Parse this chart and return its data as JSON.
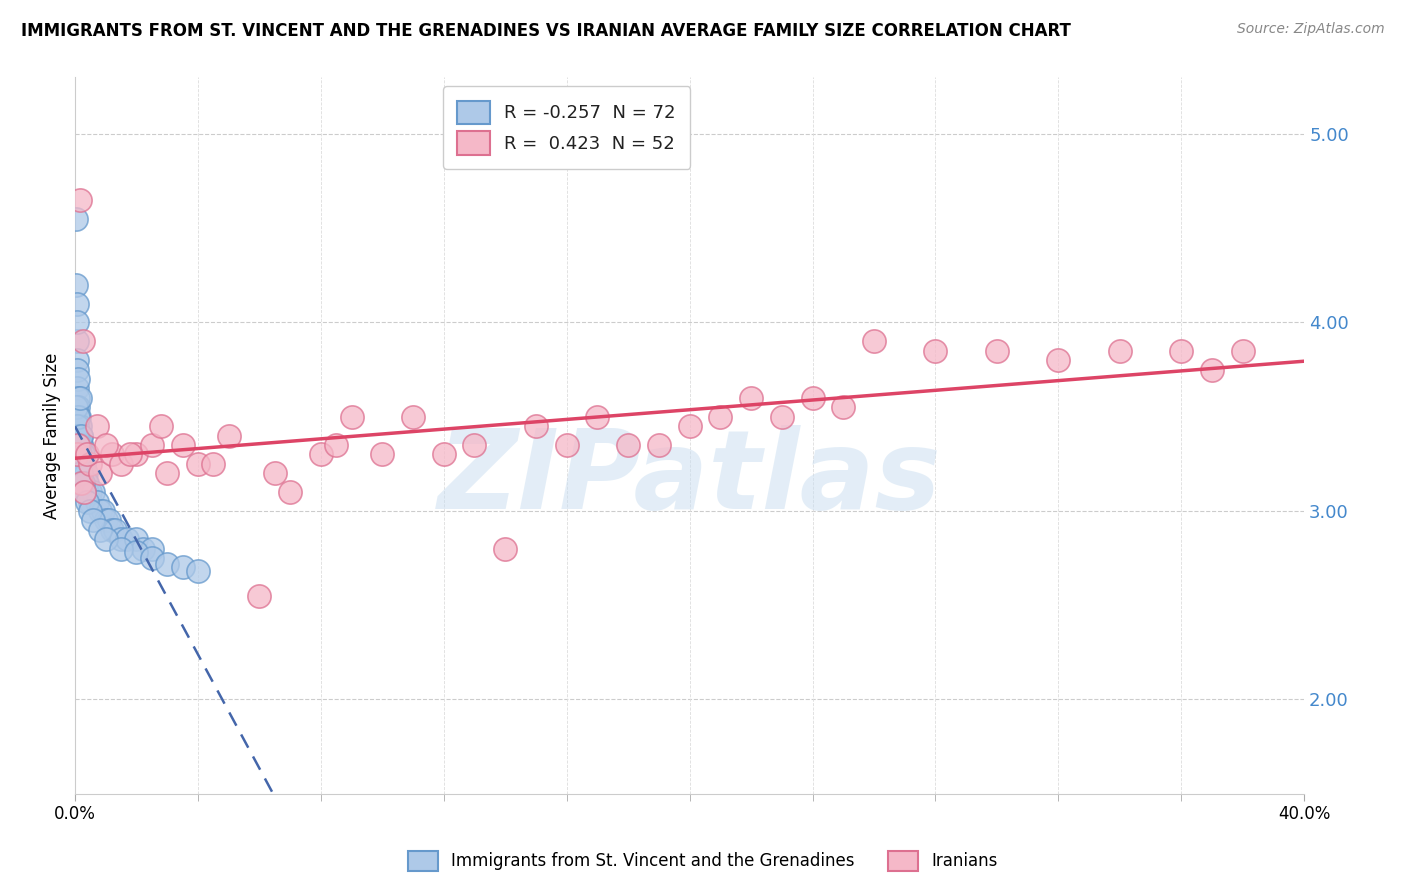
{
  "title": "IMMIGRANTS FROM ST. VINCENT AND THE GRENADINES VS IRANIAN AVERAGE FAMILY SIZE CORRELATION CHART",
  "source": "Source: ZipAtlas.com",
  "ylabel": "Average Family Size",
  "right_yticks": [
    2.0,
    3.0,
    4.0,
    5.0
  ],
  "blue_R": -0.257,
  "blue_N": 72,
  "pink_R": 0.423,
  "pink_N": 52,
  "blue_label": "Immigrants from St. Vincent and the Grenadines",
  "pink_label": "Iranians",
  "blue_fill": "#aec9e8",
  "pink_fill": "#f5b8c8",
  "blue_edge": "#6699cc",
  "pink_edge": "#dd7090",
  "blue_line_color": "#4466aa",
  "pink_line_color": "#dd4466",
  "watermark_color": "#c8ddf0",
  "xmin": 0.0,
  "xmax": 40.0,
  "ymin": 1.5,
  "ymax": 5.3,
  "blue_x": [
    0.02,
    0.03,
    0.05,
    0.05,
    0.06,
    0.07,
    0.08,
    0.08,
    0.09,
    0.1,
    0.1,
    0.1,
    0.12,
    0.12,
    0.13,
    0.15,
    0.15,
    0.15,
    0.18,
    0.18,
    0.2,
    0.2,
    0.2,
    0.22,
    0.22,
    0.25,
    0.25,
    0.28,
    0.3,
    0.3,
    0.3,
    0.35,
    0.35,
    0.4,
    0.4,
    0.5,
    0.5,
    0.6,
    0.7,
    0.8,
    0.9,
    1.0,
    1.1,
    1.2,
    1.3,
    1.5,
    1.7,
    2.0,
    2.2,
    2.5,
    0.04,
    0.06,
    0.08,
    0.1,
    0.12,
    0.15,
    0.2,
    0.25,
    0.3,
    0.4,
    0.5,
    0.6,
    0.8,
    1.0,
    1.5,
    2.0,
    2.5,
    3.0,
    3.5,
    4.0,
    0.15,
    0.2
  ],
  "blue_y": [
    4.55,
    4.2,
    4.1,
    3.9,
    4.0,
    3.8,
    3.75,
    3.65,
    3.7,
    3.6,
    3.55,
    3.5,
    3.5,
    3.45,
    3.4,
    3.45,
    3.4,
    3.35,
    3.4,
    3.35,
    3.35,
    3.3,
    3.25,
    3.3,
    3.25,
    3.3,
    3.2,
    3.25,
    3.25,
    3.2,
    3.15,
    3.2,
    3.15,
    3.15,
    3.1,
    3.1,
    3.05,
    3.1,
    3.05,
    3.0,
    3.0,
    2.95,
    2.95,
    2.9,
    2.9,
    2.85,
    2.85,
    2.85,
    2.8,
    2.8,
    3.55,
    3.45,
    3.4,
    3.5,
    3.35,
    3.3,
    3.2,
    3.15,
    3.1,
    3.05,
    3.0,
    2.95,
    2.9,
    2.85,
    2.8,
    2.78,
    2.75,
    2.72,
    2.7,
    2.68,
    3.6,
    3.4
  ],
  "pink_x": [
    0.05,
    0.1,
    0.2,
    0.3,
    0.5,
    0.8,
    1.2,
    1.5,
    2.0,
    2.5,
    3.0,
    3.5,
    4.0,
    5.0,
    6.0,
    6.5,
    7.0,
    8.0,
    8.5,
    9.0,
    10.0,
    11.0,
    12.0,
    13.0,
    14.0,
    15.0,
    16.0,
    17.0,
    18.0,
    19.0,
    20.0,
    21.0,
    22.0,
    23.0,
    24.0,
    25.0,
    26.0,
    28.0,
    30.0,
    32.0,
    34.0,
    36.0,
    37.0,
    38.0,
    0.15,
    0.25,
    0.4,
    0.7,
    1.0,
    1.8,
    2.8,
    4.5
  ],
  "pink_y": [
    3.3,
    3.35,
    3.15,
    3.1,
    3.25,
    3.2,
    3.3,
    3.25,
    3.3,
    3.35,
    3.2,
    3.35,
    3.25,
    3.4,
    2.55,
    3.2,
    3.1,
    3.3,
    3.35,
    3.5,
    3.3,
    3.5,
    3.3,
    3.35,
    2.8,
    3.45,
    3.35,
    3.5,
    3.35,
    3.35,
    3.45,
    3.5,
    3.6,
    3.5,
    3.6,
    3.55,
    3.9,
    3.85,
    3.85,
    3.8,
    3.85,
    3.85,
    3.75,
    3.85,
    4.65,
    3.9,
    3.3,
    3.45,
    3.35,
    3.3,
    3.45,
    3.25
  ]
}
